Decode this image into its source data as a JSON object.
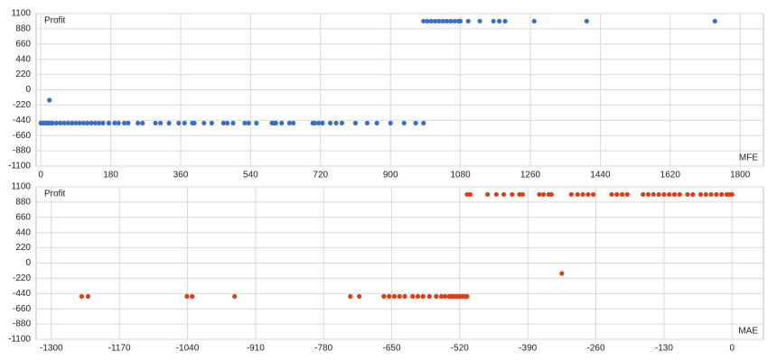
{
  "chart_data": [
    {
      "type": "scatter",
      "y_label": "Profit",
      "x_label": "MFE",
      "color": "#3a6fc9",
      "grid": true,
      "xlim": [
        -12,
        1860
      ],
      "xticks": [
        0,
        180,
        360,
        540,
        720,
        900,
        1080,
        1260,
        1440,
        1620,
        1800
      ],
      "ylim": [
        -1100,
        1100
      ],
      "yticks": [
        1100,
        880,
        660,
        440,
        220,
        0,
        -220,
        -440,
        -660,
        -880,
        -1100
      ],
      "x": [
        0,
        5,
        10,
        15,
        20,
        25,
        30,
        40,
        50,
        60,
        70,
        80,
        90,
        100,
        110,
        120,
        130,
        140,
        150,
        160,
        175,
        190,
        200,
        215,
        225,
        250,
        262,
        295,
        308,
        330,
        355,
        370,
        390,
        395,
        420,
        440,
        470,
        480,
        495,
        525,
        535,
        555,
        595,
        600,
        605,
        620,
        640,
        650,
        700,
        705,
        715,
        725,
        745,
        760,
        775,
        810,
        840,
        865,
        900,
        935,
        965,
        985,
        22,
        985,
        995,
        1005,
        1015,
        1025,
        1035,
        1045,
        1055,
        1065,
        1075,
        1080,
        1100,
        1130,
        1165,
        1180,
        1195,
        1270,
        1405,
        1735
      ],
      "values": [
        -480,
        -480,
        -480,
        -480,
        -480,
        -480,
        -480,
        -480,
        -480,
        -480,
        -480,
        -480,
        -480,
        -480,
        -480,
        -480,
        -480,
        -480,
        -480,
        -480,
        -480,
        -480,
        -480,
        -480,
        -480,
        -480,
        -480,
        -480,
        -480,
        -480,
        -480,
        -480,
        -480,
        -480,
        -480,
        -480,
        -480,
        -480,
        -480,
        -480,
        -480,
        -480,
        -480,
        -480,
        -480,
        -480,
        -480,
        -480,
        -480,
        -480,
        -480,
        -480,
        -480,
        -480,
        -480,
        -480,
        -480,
        -480,
        -480,
        -480,
        -480,
        -480,
        -150,
        990,
        990,
        990,
        990,
        990,
        990,
        990,
        990,
        990,
        990,
        990,
        990,
        990,
        990,
        990,
        990,
        990,
        990,
        990
      ]
    },
    {
      "type": "scatter",
      "y_label": "Profit",
      "x_label": "MAE",
      "color": "#d9401a",
      "grid": true,
      "xlim": [
        -1329,
        60
      ],
      "xticks": [
        -1300,
        -1170,
        -1040,
        -910,
        -780,
        -650,
        -520,
        -390,
        -260,
        -130,
        0
      ],
      "ylim": [
        -1100,
        1100
      ],
      "yticks": [
        1100,
        880,
        660,
        440,
        220,
        0,
        -220,
        -440,
        -660,
        -880,
        -1100
      ],
      "x": [
        -1242,
        -1230,
        -1041,
        -1031,
        -950,
        -729,
        -712,
        -665,
        -655,
        -645,
        -635,
        -625,
        -610,
        -600,
        -590,
        -578,
        -565,
        -555,
        -548,
        -540,
        -535,
        -530,
        -525,
        -520,
        -515,
        -510,
        -506,
        -325,
        -506,
        -500,
        -467,
        -450,
        -436,
        -420,
        -406,
        -400,
        -368,
        -360,
        -350,
        -345,
        -307,
        -295,
        -285,
        -275,
        -265,
        -230,
        -220,
        -210,
        -200,
        -170,
        -160,
        -150,
        -140,
        -130,
        -120,
        -110,
        -100,
        -85,
        -75,
        -60,
        -50,
        -40,
        -30,
        -20,
        -10,
        -5,
        0
      ],
      "values": [
        -480,
        -480,
        -480,
        -480,
        -480,
        -480,
        -480,
        -480,
        -480,
        -480,
        -480,
        -480,
        -480,
        -480,
        -480,
        -480,
        -480,
        -480,
        -480,
        -480,
        -480,
        -480,
        -480,
        -480,
        -480,
        -480,
        -480,
        -150,
        990,
        990,
        990,
        990,
        990,
        990,
        990,
        990,
        990,
        990,
        990,
        990,
        990,
        990,
        990,
        990,
        990,
        990,
        990,
        990,
        990,
        990,
        990,
        990,
        990,
        990,
        990,
        990,
        990,
        990,
        990,
        990,
        990,
        990,
        990,
        990,
        990,
        990,
        990
      ]
    }
  ]
}
